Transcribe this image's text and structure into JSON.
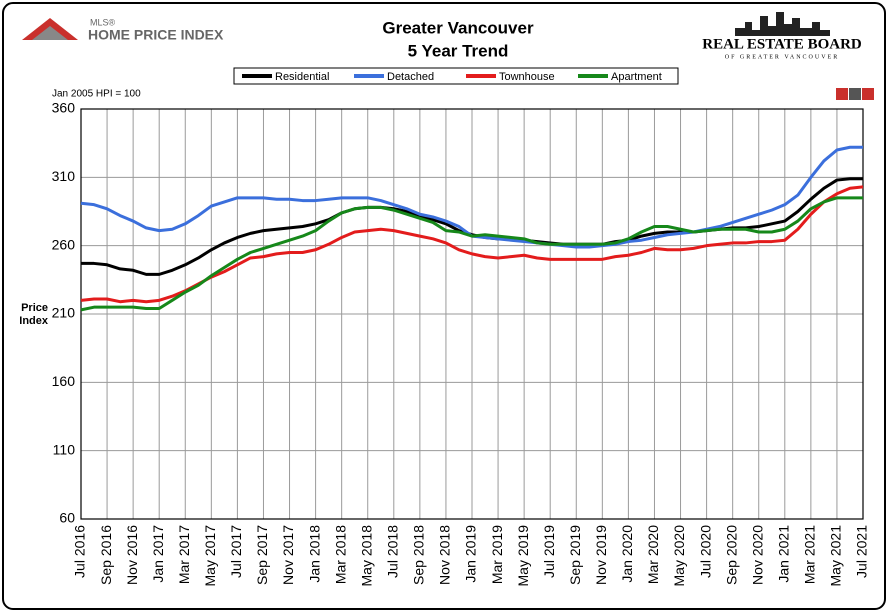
{
  "header": {
    "left_logo_small": "MLS®",
    "left_logo": "HOME PRICE INDEX",
    "right_logo": "REAL ESTATE BOARD",
    "right_logo_sub": "OF GREATER VANCOUVER"
  },
  "chart_data": {
    "type": "line",
    "title": "Greater Vancouver",
    "subtitle": "5 Year Trend",
    "note": "Jan 2005 HPI = 100",
    "ylabel": "Price Index",
    "categories": [
      "Jul 2016",
      null,
      "Sep 2016",
      null,
      "Nov 2016",
      null,
      "Jan 2017",
      null,
      "Mar 2017",
      null,
      "May 2017",
      null,
      "Jul 2017",
      null,
      "Sep 2017",
      null,
      "Nov 2017",
      null,
      "Jan 2018",
      null,
      "Mar 2018",
      null,
      "May 2018",
      null,
      "Jul 2018",
      null,
      "Sep 2018",
      null,
      "Nov 2018",
      null,
      "Jan 2019",
      null,
      "Mar 2019",
      null,
      "May 2019",
      null,
      "Jul 2019",
      null,
      "Sep 2019",
      null,
      "Nov 2019",
      null,
      "Jan 2020",
      null,
      "Mar 2020",
      null,
      "May 2020",
      null,
      "Jul 2020",
      null,
      "Sep 2020",
      null,
      "Nov 2020",
      null,
      "Jan 2021",
      null,
      "Mar 2021",
      null,
      "May 2021",
      null,
      "Jul 2021"
    ],
    "series": [
      {
        "name": "Residential",
        "color": "#000000",
        "values": [
          247,
          247,
          246,
          243,
          242,
          239,
          239,
          242,
          246,
          251,
          257,
          262,
          266,
          269,
          271,
          272,
          273,
          274,
          276,
          279,
          284,
          287,
          288,
          288,
          287,
          285,
          282,
          279,
          276,
          271,
          268,
          266,
          265,
          265,
          264,
          263,
          262,
          261,
          261,
          261,
          261,
          263,
          264,
          267,
          269,
          270,
          270,
          270,
          271,
          272,
          273,
          273,
          274,
          276,
          278,
          285,
          294,
          302,
          308,
          309,
          309
        ]
      },
      {
        "name": "Detached",
        "color": "#3b6fdc",
        "values": [
          291,
          290,
          287,
          282,
          278,
          273,
          271,
          272,
          276,
          282,
          289,
          292,
          295,
          295,
          295,
          294,
          294,
          293,
          293,
          294,
          295,
          295,
          295,
          293,
          290,
          287,
          283,
          281,
          278,
          274,
          267,
          266,
          265,
          264,
          263,
          262,
          261,
          260,
          259,
          259,
          260,
          261,
          263,
          264,
          266,
          268,
          269,
          270,
          272,
          274,
          277,
          280,
          283,
          286,
          290,
          297,
          310,
          322,
          330,
          332,
          332
        ]
      },
      {
        "name": "Townhouse",
        "color": "#e31c1c",
        "values": [
          220,
          221,
          221,
          219,
          220,
          219,
          220,
          223,
          227,
          232,
          237,
          241,
          246,
          251,
          252,
          254,
          255,
          255,
          257,
          261,
          266,
          270,
          271,
          272,
          271,
          269,
          267,
          265,
          262,
          257,
          254,
          252,
          251,
          252,
          253,
          251,
          250,
          250,
          250,
          250,
          250,
          252,
          253,
          255,
          258,
          257,
          257,
          258,
          260,
          261,
          262,
          262,
          263,
          263,
          264,
          272,
          283,
          292,
          298,
          302,
          303
        ]
      },
      {
        "name": "Apartment",
        "color": "#16881a",
        "values": [
          213,
          215,
          215,
          215,
          215,
          214,
          214,
          220,
          226,
          231,
          238,
          244,
          250,
          255,
          258,
          261,
          264,
          267,
          271,
          278,
          284,
          287,
          288,
          288,
          286,
          283,
          280,
          277,
          271,
          270,
          267,
          268,
          267,
          266,
          265,
          262,
          261,
          261,
          261,
          261,
          261,
          262,
          265,
          270,
          274,
          274,
          272,
          270,
          271,
          272,
          272,
          272,
          270,
          270,
          272,
          278,
          287,
          292,
          295,
          295,
          295
        ]
      }
    ],
    "ylim": [
      60,
      360
    ],
    "yticks": [
      60,
      110,
      160,
      210,
      260,
      310,
      360
    ],
    "grid": true
  }
}
